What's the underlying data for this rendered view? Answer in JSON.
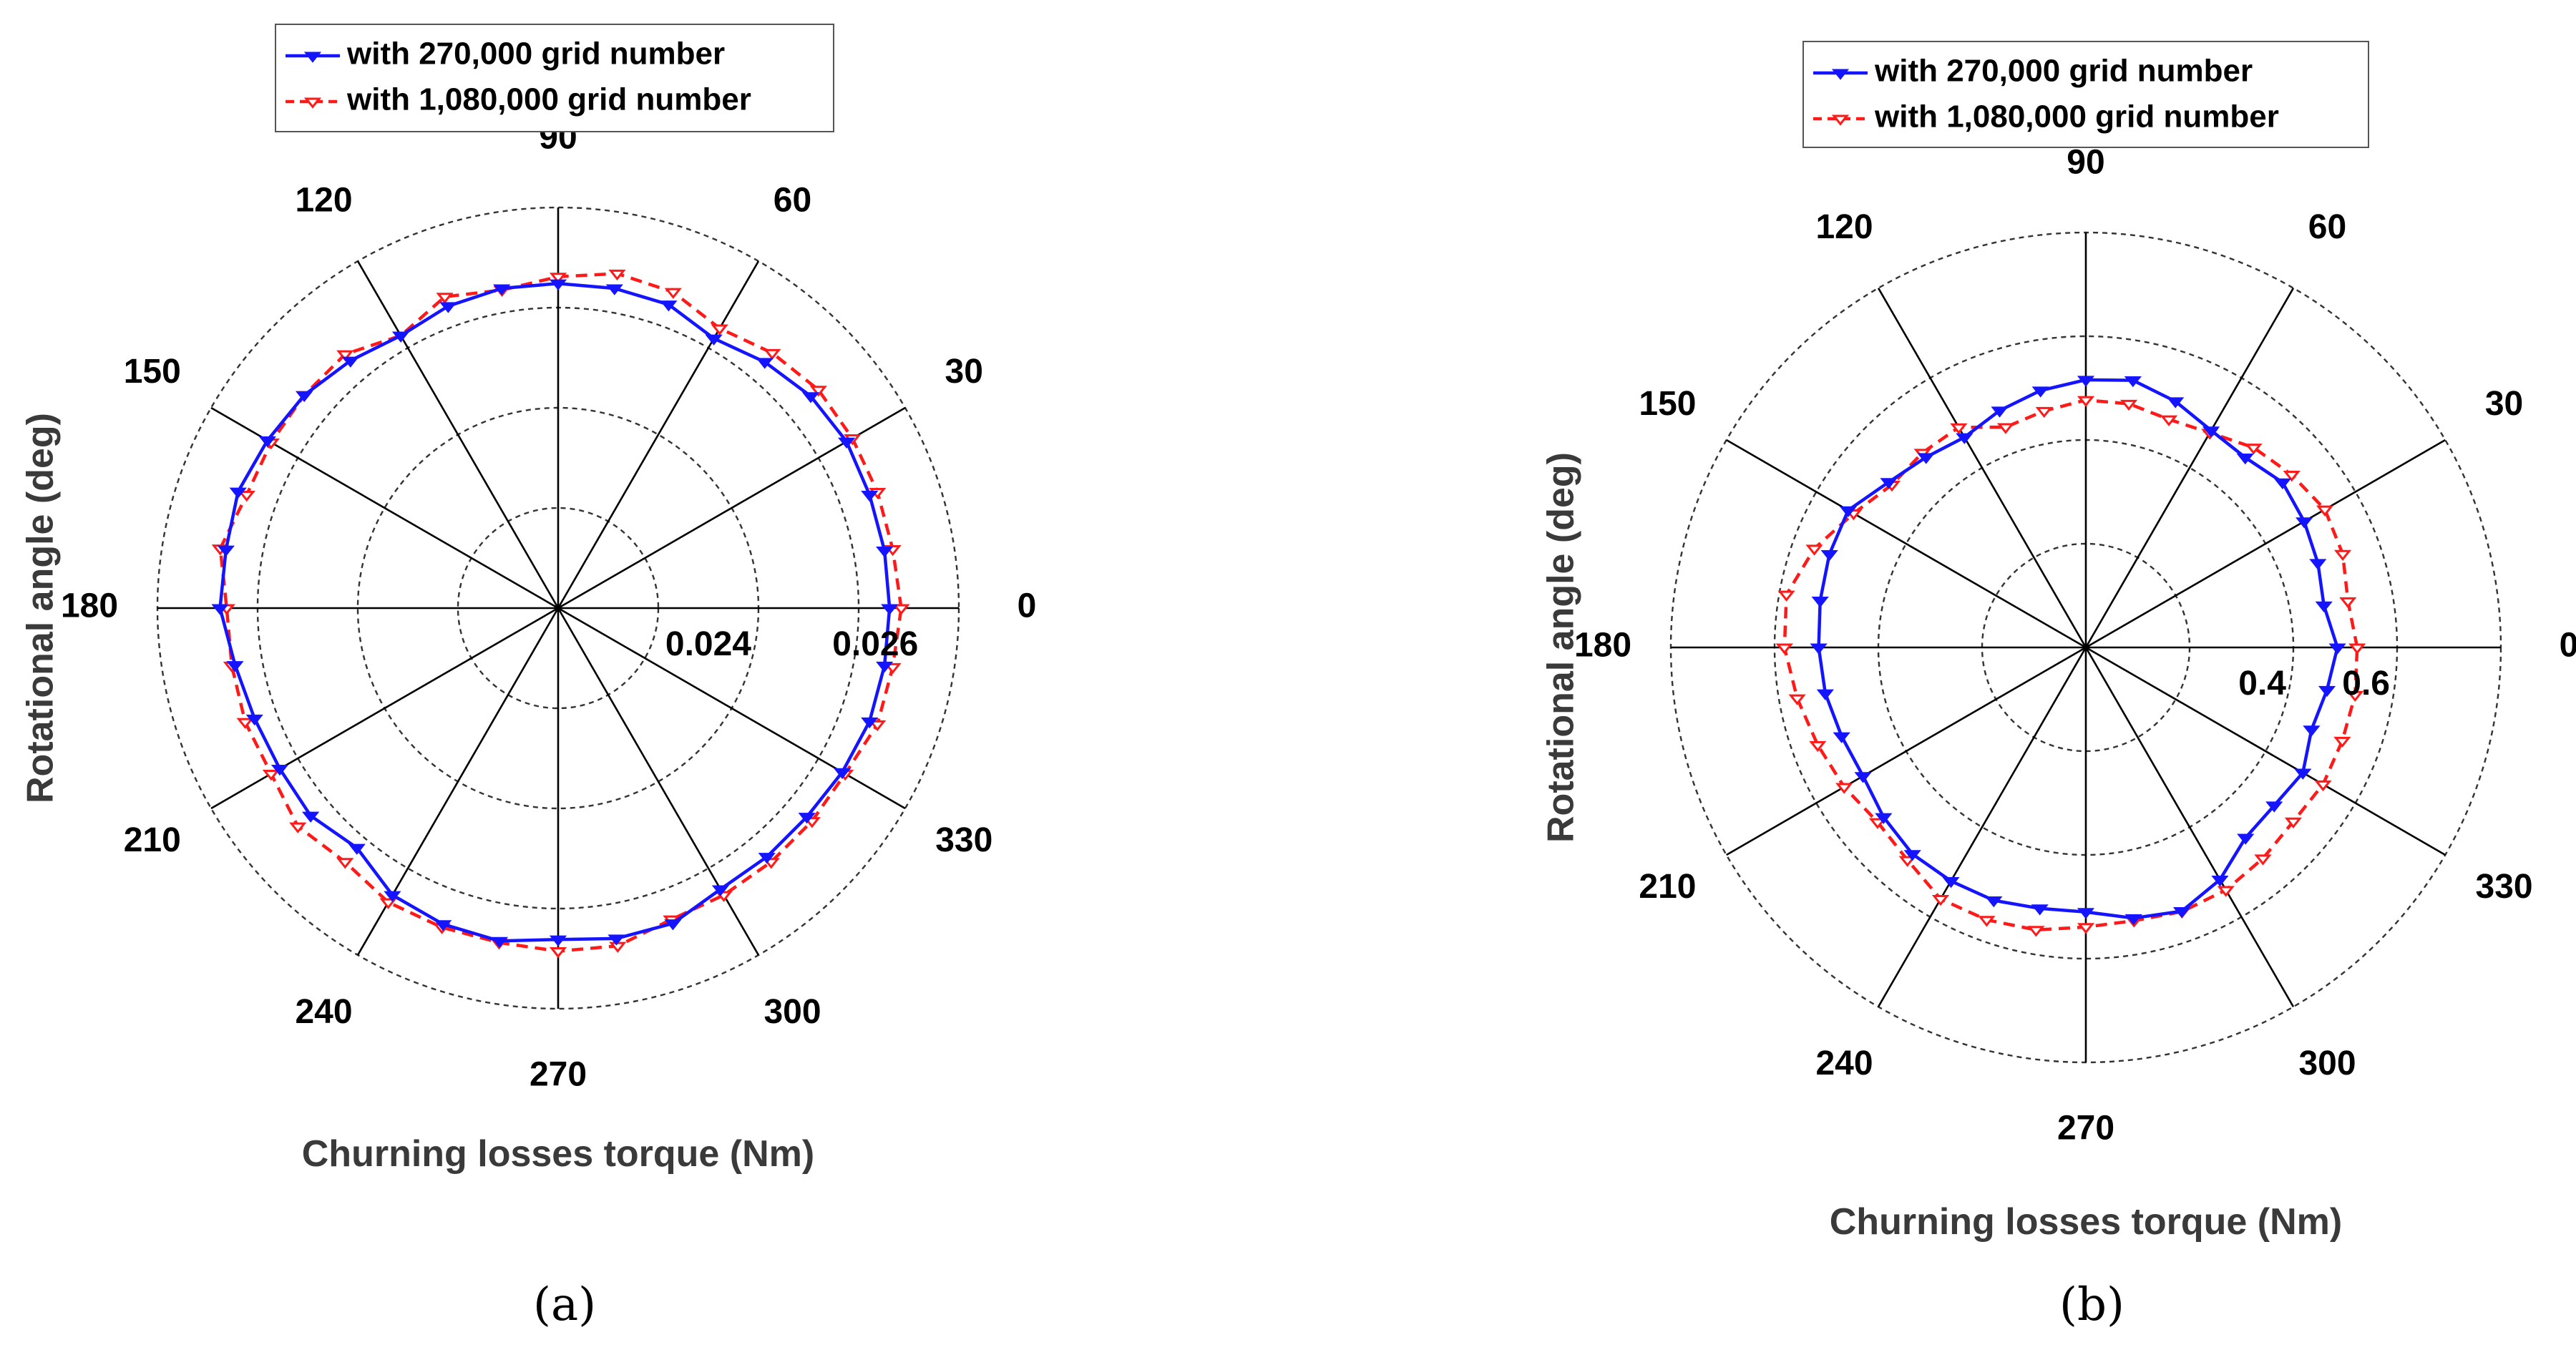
{
  "colors": {
    "series1": "#1414ff",
    "series2": "#ff1a1a",
    "axis": "#000000",
    "grid": "#333333"
  },
  "chart_data": [
    {
      "type": "polar-line",
      "panel_label": "(a)",
      "xlabel": "Churning losses torque (Nm)",
      "ylabel": "Rotational angle (deg)",
      "angle_ticks": [
        "0",
        "30",
        "60",
        "90",
        "120",
        "150",
        "180",
        "210",
        "240",
        "270",
        "300",
        "330"
      ],
      "rlim": [
        0.0216,
        0.0264
      ],
      "r_grid": [
        0.0216,
        0.0228,
        0.024,
        0.0252,
        0.0264
      ],
      "r_tick_labels": [
        {
          "value": 0.024,
          "label": "0.024"
        },
        {
          "value": 0.026,
          "label": "0.026"
        }
      ],
      "grid": true,
      "legend_position": "top",
      "angles_deg": [
        0,
        10,
        20,
        30,
        40,
        50,
        60,
        70,
        80,
        90,
        100,
        110,
        120,
        130,
        140,
        150,
        160,
        170,
        180,
        190,
        200,
        210,
        220,
        230,
        240,
        250,
        260,
        270,
        280,
        290,
        300,
        310,
        320,
        330,
        340,
        350
      ],
      "series": [
        {
          "name": "with 270,000 grid number",
          "marker": "filled-down-triangle",
          "line": "solid",
          "values": [
            0.02557,
            0.02557,
            0.02557,
            0.02559,
            0.02555,
            0.02545,
            0.02533,
            0.02547,
            0.02549,
            0.02549,
            0.02549,
            0.02545,
            0.02537,
            0.02547,
            0.02557,
            0.02562,
            0.02568,
            0.02564,
            0.02565,
            0.02553,
            0.02547,
            0.02545,
            0.02547,
            0.02535,
            0.02557,
            0.02563,
            0.02565,
            0.02557,
            0.02562,
            0.02562,
            0.02549,
            0.02549,
            0.02549,
            0.02553,
            0.02557,
            0.02557
          ]
        },
        {
          "name": "with 1,080,000 grid number",
          "marker": "open-down-triangle",
          "line": "dashed",
          "values": [
            0.02571,
            0.02567,
            0.02567,
            0.02567,
            0.02567,
            0.02559,
            0.02547,
            0.02563,
            0.02567,
            0.02557,
            0.02547,
            0.02557,
            0.02537,
            0.02557,
            0.02557,
            0.02557,
            0.02557,
            0.02571,
            0.02557,
            0.02557,
            0.02559,
            0.02557,
            0.02567,
            0.02557,
            0.02567,
            0.02567,
            0.02567,
            0.02571,
            0.02571,
            0.02557,
            0.02557,
            0.02557,
            0.02557,
            0.02557,
            0.02567,
            0.02567
          ]
        }
      ]
    },
    {
      "type": "polar-line",
      "panel_label": "(b)",
      "xlabel": "Churning losses torque (Nm)",
      "ylabel": "Rotational angle (deg)",
      "angle_ticks": [
        "0",
        "30",
        "60",
        "90",
        "120",
        "150",
        "180",
        "210",
        "240",
        "270",
        "300",
        "330"
      ],
      "rlim": [
        0.0,
        0.8
      ],
      "r_grid": [
        0.2,
        0.4,
        0.6,
        0.8
      ],
      "r_tick_labels": [
        {
          "value": 0.4,
          "label": "0.4"
        },
        {
          "value": 0.6,
          "label": "0.6"
        }
      ],
      "grid": true,
      "legend_position": "top",
      "angles_deg": [
        0,
        10,
        20,
        30,
        40,
        50,
        60,
        70,
        80,
        90,
        100,
        110,
        120,
        130,
        140,
        150,
        160,
        170,
        180,
        190,
        200,
        210,
        220,
        230,
        240,
        250,
        260,
        270,
        280,
        290,
        300,
        310,
        320,
        330,
        340,
        350
      ],
      "series": [
        {
          "name": "with 270,000 grid number",
          "marker": "filled-down-triangle",
          "line": "solid",
          "values": [
            0.485,
            0.466,
            0.476,
            0.486,
            0.495,
            0.478,
            0.483,
            0.505,
            0.523,
            0.516,
            0.503,
            0.486,
            0.468,
            0.479,
            0.496,
            0.529,
            0.526,
            0.52,
            0.515,
            0.51,
            0.501,
            0.496,
            0.509,
            0.52,
            0.52,
            0.519,
            0.511,
            0.51,
            0.53,
            0.541,
            0.517,
            0.479,
            0.474,
            0.483,
            0.463,
            0.472
          ]
        },
        {
          "name": "with 1,080,000 grid number",
          "marker": "open-down-triangle",
          "line": "dashed",
          "values": [
            0.523,
            0.513,
            0.527,
            0.532,
            0.518,
            0.503,
            0.478,
            0.468,
            0.477,
            0.477,
            0.463,
            0.452,
            0.49,
            0.49,
            0.488,
            0.517,
            0.557,
            0.586,
            0.581,
            0.565,
            0.55,
            0.538,
            0.524,
            0.535,
            0.56,
            0.559,
            0.553,
            0.539,
            0.535,
            0.542,
            0.54,
            0.531,
            0.522,
            0.528,
            0.526,
            0.527
          ]
        }
      ]
    }
  ]
}
